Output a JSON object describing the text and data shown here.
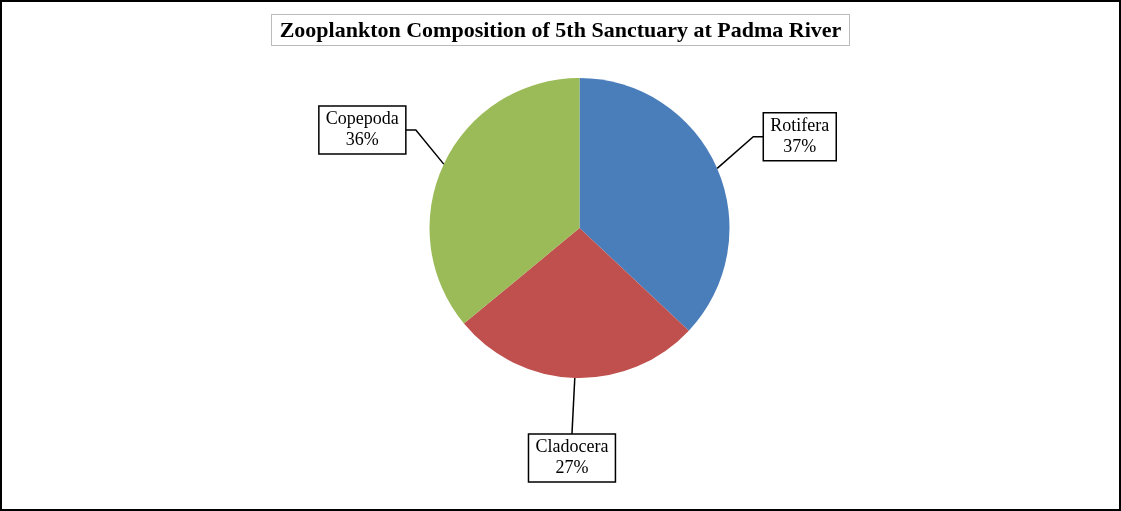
{
  "chart_data": {
    "type": "pie",
    "title": "Zooplankton Composition of 5th Sanctuary at Padma River",
    "categories": [
      "Rotifera",
      "Cladocera",
      "Copepoda"
    ],
    "values": [
      37,
      27,
      36
    ],
    "value_labels": [
      "37%",
      "27%",
      "36%"
    ],
    "colors": [
      "#4a7ebb",
      "#c0504d",
      "#9bbb59"
    ],
    "legend": false
  }
}
